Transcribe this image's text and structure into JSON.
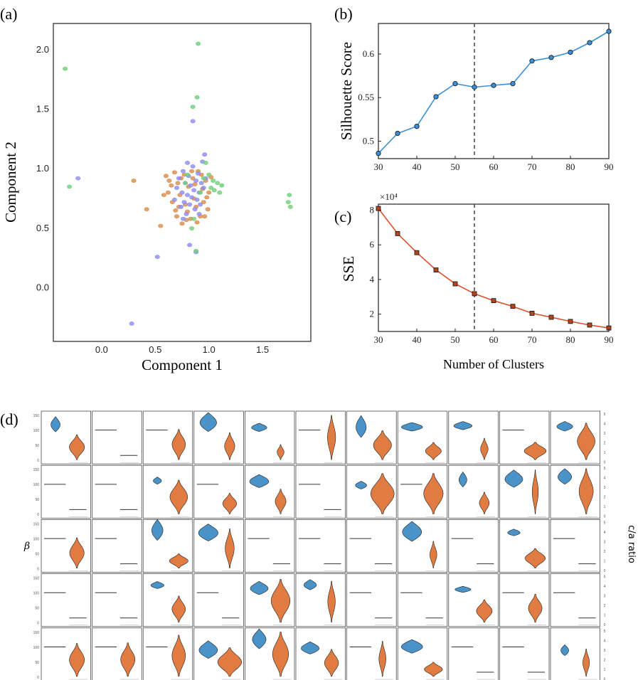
{
  "panel_labels": {
    "a": "(a)",
    "b": "(b)",
    "c": "(c)",
    "d": "(d)"
  },
  "colors": {
    "blue": "#4a93c9",
    "orange": "#e07b42",
    "purple": "#8c8cf0",
    "green": "#6fd07a",
    "scatter_orange": "#d98c4a",
    "line_blue": "#3a8fd8",
    "line_red": "#d9502a"
  },
  "chart_data": [
    {
      "id": "a",
      "type": "scatter",
      "xlabel": "Component 1",
      "ylabel": "Component 2",
      "xlim": [
        -0.45,
        1.95
      ],
      "ylim": [
        -0.45,
        2.22
      ],
      "xticks": [
        "0.0",
        "0.5",
        "1.0",
        "1.5"
      ],
      "yticks": [
        "0.0",
        "0.5",
        "1.0",
        "1.5",
        "2.0"
      ],
      "series": [
        {
          "name": "orange",
          "color": "#d98c4a",
          "points": [
            [
              0.3,
              0.9
            ],
            [
              0.42,
              0.66
            ],
            [
              0.55,
              0.52
            ],
            [
              0.6,
              0.94
            ],
            [
              0.62,
              0.8
            ],
            [
              0.66,
              0.72
            ],
            [
              0.68,
              0.97
            ],
            [
              0.7,
              0.6
            ],
            [
              0.71,
              0.88
            ],
            [
              0.73,
              0.78
            ],
            [
              0.75,
              0.54
            ],
            [
              0.77,
              0.95
            ],
            [
              0.78,
              0.7
            ],
            [
              0.8,
              0.64
            ],
            [
              0.81,
              0.85
            ],
            [
              0.83,
              0.58
            ],
            [
              0.85,
              0.92
            ],
            [
              0.86,
              0.75
            ],
            [
              0.88,
              0.68
            ],
            [
              0.9,
              0.98
            ],
            [
              0.92,
              0.6
            ],
            [
              0.94,
              0.83
            ],
            [
              0.95,
              0.72
            ],
            [
              0.97,
              0.9
            ],
            [
              0.99,
              0.66
            ],
            [
              1.0,
              0.8
            ],
            [
              1.02,
              0.93
            ],
            [
              0.65,
              0.86
            ],
            [
              0.69,
              0.65
            ],
            [
              0.74,
              0.92
            ],
            [
              0.79,
              0.57
            ],
            [
              0.84,
              0.98
            ],
            [
              0.89,
              0.55
            ],
            [
              0.93,
              0.95
            ],
            [
              0.96,
              0.6
            ],
            [
              0.63,
              0.9
            ],
            [
              0.72,
              0.68
            ],
            [
              0.87,
              0.87
            ],
            [
              0.98,
              0.76
            ],
            [
              0.58,
              0.78
            ]
          ]
        },
        {
          "name": "purple",
          "color": "#8c8cf0",
          "points": [
            [
              -0.22,
              0.92
            ],
            [
              0.28,
              -0.3
            ],
            [
              0.52,
              0.26
            ],
            [
              0.68,
              0.74
            ],
            [
              0.7,
              0.84
            ],
            [
              0.72,
              0.92
            ],
            [
              0.74,
              0.68
            ],
            [
              0.75,
              0.8
            ],
            [
              0.76,
              0.98
            ],
            [
              0.77,
              0.72
            ],
            [
              0.78,
              0.88
            ],
            [
              0.79,
              0.62
            ],
            [
              0.8,
              0.78
            ],
            [
              0.81,
              0.94
            ],
            [
              0.82,
              0.7
            ],
            [
              0.83,
              0.86
            ],
            [
              0.84,
              0.76
            ],
            [
              0.85,
              1.02
            ],
            [
              0.86,
              0.82
            ],
            [
              0.87,
              0.66
            ],
            [
              0.88,
              0.9
            ],
            [
              0.89,
              0.74
            ],
            [
              0.9,
              0.96
            ],
            [
              0.91,
              0.8
            ],
            [
              0.92,
              0.7
            ],
            [
              0.93,
              0.88
            ],
            [
              0.94,
              1.06
            ],
            [
              0.95,
              0.84
            ],
            [
              0.96,
              1.12
            ],
            [
              0.97,
              0.92
            ],
            [
              0.85,
              1.4
            ],
            [
              0.88,
              0.3
            ],
            [
              0.82,
              0.36
            ],
            [
              0.76,
              0.58
            ],
            [
              0.8,
              1.05
            ],
            [
              0.91,
              0.62
            ]
          ]
        },
        {
          "name": "green",
          "color": "#6fd07a",
          "points": [
            [
              -0.34,
              1.84
            ],
            [
              -0.3,
              0.85
            ],
            [
              0.78,
              0.88
            ],
            [
              0.8,
              0.95
            ],
            [
              0.84,
              0.5
            ],
            [
              0.86,
              0.58
            ],
            [
              0.85,
              1.52
            ],
            [
              0.89,
              1.6
            ],
            [
              0.9,
              2.05
            ],
            [
              0.88,
              0.31
            ],
            [
              0.92,
              0.8
            ],
            [
              0.95,
              0.92
            ],
            [
              1.0,
              0.95
            ],
            [
              1.02,
              0.84
            ],
            [
              1.05,
              0.82
            ],
            [
              1.08,
              0.88
            ],
            [
              1.1,
              0.8
            ],
            [
              1.12,
              0.86
            ],
            [
              1.74,
              0.72
            ],
            [
              1.75,
              0.78
            ],
            [
              1.76,
              0.68
            ],
            [
              0.97,
              1.05
            ],
            [
              1.04,
              0.9
            ]
          ]
        }
      ]
    },
    {
      "id": "b",
      "type": "line",
      "ylabel": "Silhouette Score",
      "x": [
        30,
        35,
        40,
        45,
        50,
        55,
        60,
        65,
        70,
        75,
        80,
        85,
        90
      ],
      "y": [
        0.486,
        0.509,
        0.517,
        0.551,
        0.566,
        0.562,
        0.564,
        0.566,
        0.592,
        0.596,
        0.602,
        0.613,
        0.626
      ],
      "xlim": [
        30,
        90
      ],
      "ylim": [
        0.48,
        0.635
      ],
      "xticks": [
        "30",
        "40",
        "50",
        "60",
        "70",
        "80",
        "90"
      ],
      "yticks": [
        "0.5",
        "0.55",
        "0.6"
      ],
      "vline": 55
    },
    {
      "id": "c",
      "type": "line",
      "ylabel": "SSE",
      "xlabel": "Number of Clusters",
      "scale_label": "×10⁴",
      "x": [
        30,
        35,
        40,
        45,
        50,
        55,
        60,
        65,
        70,
        75,
        80,
        85,
        90
      ],
      "y": [
        8.1,
        6.65,
        5.55,
        4.55,
        3.75,
        3.18,
        2.78,
        2.45,
        2.05,
        1.82,
        1.58,
        1.37,
        1.2
      ],
      "xlim": [
        30,
        90
      ],
      "ylim": [
        1.0,
        8.35
      ],
      "xticks": [
        "30",
        "40",
        "50",
        "60",
        "70",
        "80",
        "90"
      ],
      "yticks": [
        "2",
        "4",
        "6",
        "8"
      ],
      "vline": 55
    },
    {
      "id": "d",
      "type": "violin-grid",
      "ylabel_left": "β",
      "ylabel_right": "c/a ratio",
      "left_ticks": [
        "150",
        "100",
        "50",
        "0"
      ],
      "right_ticks": [
        "5",
        "4",
        "3",
        "2",
        "1",
        "0"
      ],
      "rows": 5,
      "cols": 11
    }
  ]
}
